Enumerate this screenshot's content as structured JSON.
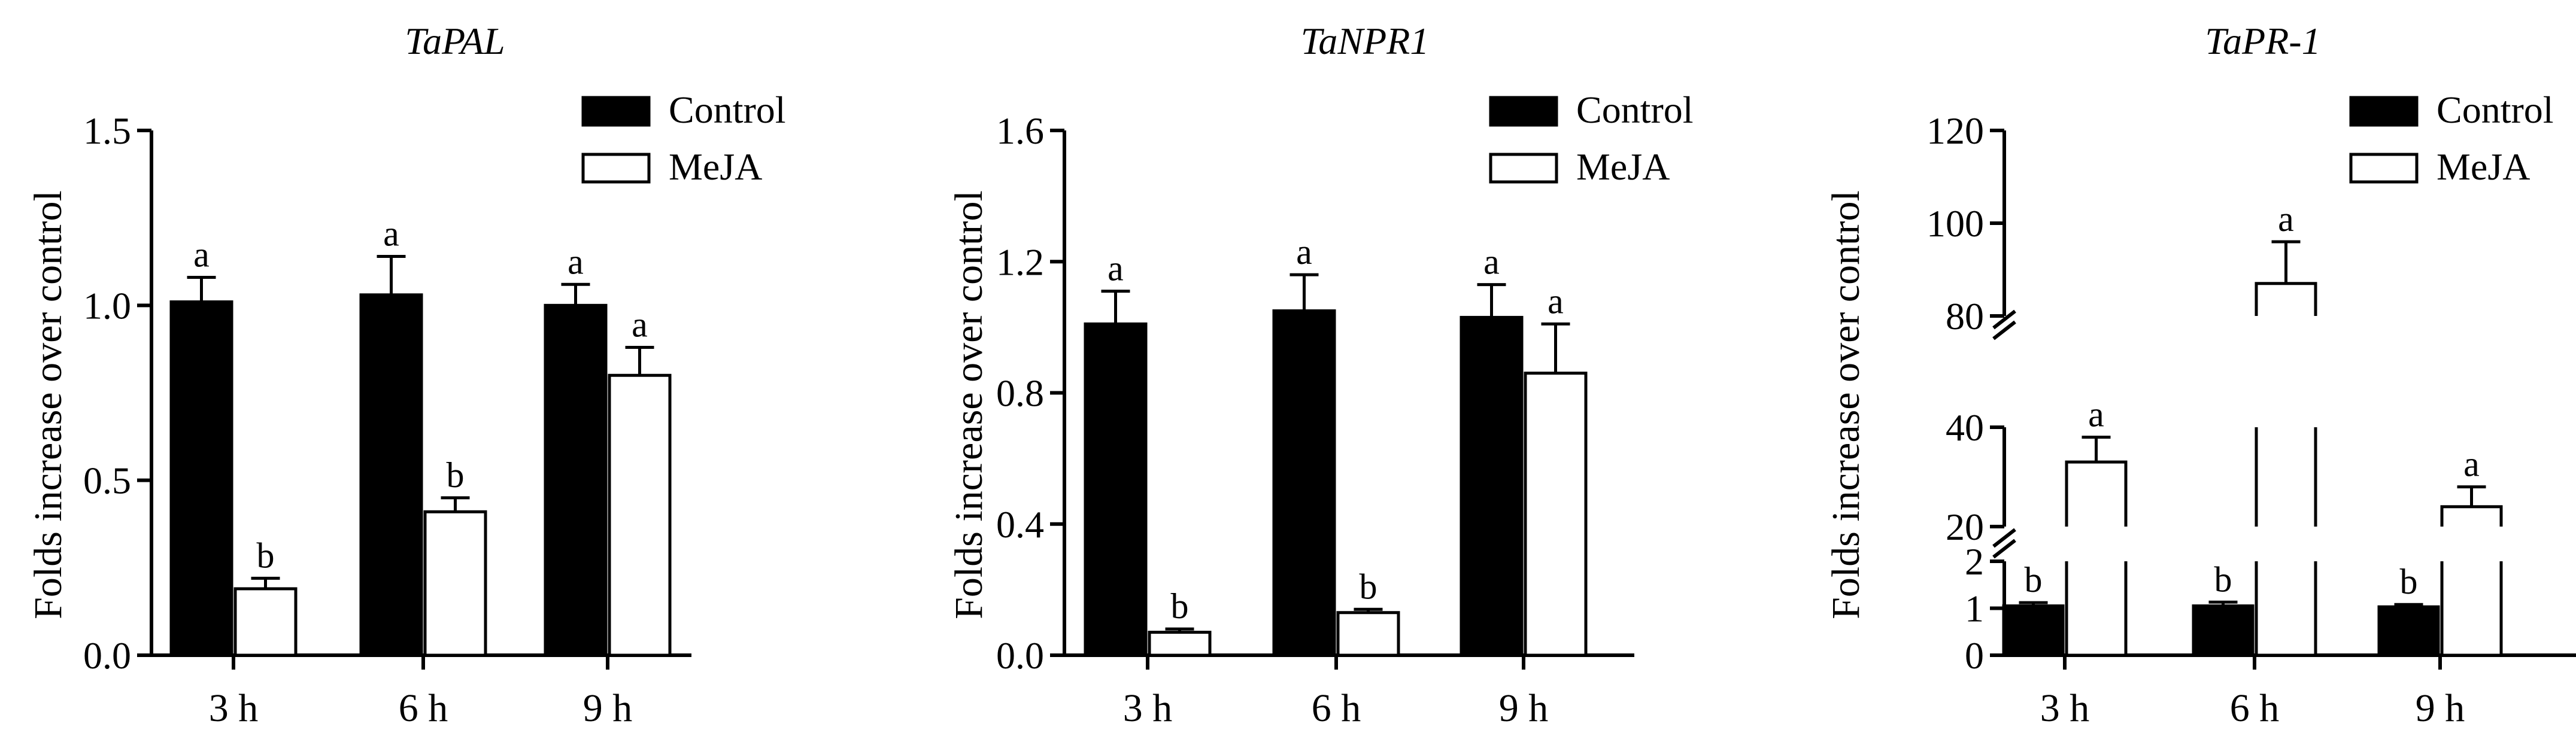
{
  "chart_data": [
    {
      "type": "bar",
      "title": "TaPAL",
      "ylabel": "Folds increase over control",
      "xlabel": "",
      "categories": [
        "3 h",
        "6 h",
        "9 h"
      ],
      "ylim": [
        0,
        1.5
      ],
      "yticks": [
        0.0,
        0.5,
        1.0,
        1.5
      ],
      "ytick_labels": [
        "0.0",
        "0.5",
        "1.0",
        "1.5"
      ],
      "legend_position": "top-right",
      "series": [
        {
          "name": "Control",
          "values": [
            1.01,
            1.03,
            1.0
          ],
          "errors": [
            0.07,
            0.11,
            0.06
          ],
          "letters": [
            "a",
            "a",
            "a"
          ]
        },
        {
          "name": "MeJA",
          "values": [
            0.19,
            0.41,
            0.8
          ],
          "errors": [
            0.03,
            0.04,
            0.08
          ],
          "letters": [
            "b",
            "b",
            "a"
          ]
        }
      ]
    },
    {
      "type": "bar",
      "title": "TaNPR1",
      "ylabel": "Folds increase over control",
      "xlabel": "",
      "categories": [
        "3 h",
        "6 h",
        "9 h"
      ],
      "ylim": [
        0,
        1.6
      ],
      "yticks": [
        0.0,
        0.4,
        0.8,
        1.2,
        1.6
      ],
      "ytick_labels": [
        "0.0",
        "0.4",
        "0.8",
        "1.2",
        "1.6"
      ],
      "legend_position": "top-right",
      "series": [
        {
          "name": "Control",
          "values": [
            1.01,
            1.05,
            1.03
          ],
          "errors": [
            0.1,
            0.11,
            0.1
          ],
          "letters": [
            "a",
            "a",
            "a"
          ]
        },
        {
          "name": "MeJA",
          "values": [
            0.07,
            0.13,
            0.86
          ],
          "errors": [
            0.01,
            0.01,
            0.15
          ],
          "letters": [
            "b",
            "b",
            "a"
          ]
        }
      ]
    },
    {
      "type": "bar",
      "title": "TaPR-1",
      "ylabel": "Folds increase over control",
      "xlabel": "",
      "categories": [
        "3 h",
        "6 h",
        "9 h"
      ],
      "ylim": [
        0,
        120
      ],
      "broken_axis": [
        [
          0,
          2
        ],
        [
          20,
          40
        ],
        [
          80,
          120
        ]
      ],
      "yticks": [
        0,
        1,
        2,
        20,
        40,
        80,
        100,
        120
      ],
      "ytick_labels": [
        "0",
        "1",
        "2",
        "20",
        "40",
        "80",
        "100",
        "120"
      ],
      "legend_position": "top-right",
      "series": [
        {
          "name": "Control",
          "values": [
            1.05,
            1.05,
            1.03
          ],
          "errors": [
            0.07,
            0.08,
            0.05
          ],
          "letters": [
            "b",
            "b",
            "b"
          ]
        },
        {
          "name": "MeJA",
          "values": [
            33,
            87,
            24
          ],
          "errors": [
            5,
            9,
            4
          ],
          "letters": [
            "a",
            "a",
            "a"
          ]
        }
      ]
    }
  ],
  "colors": {
    "control": "#000000",
    "meja": "#ffffff",
    "stroke": "#000000"
  }
}
